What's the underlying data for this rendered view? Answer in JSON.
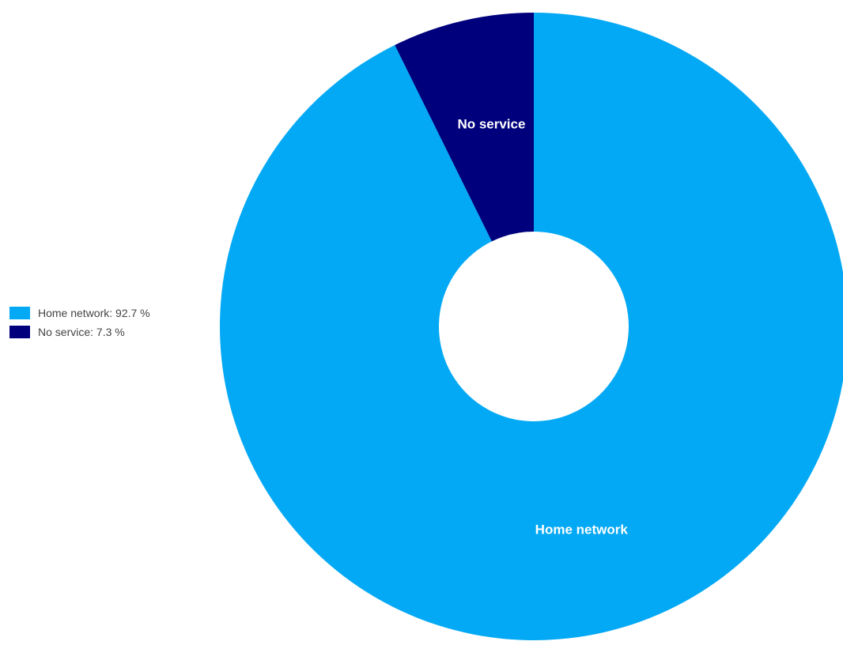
{
  "chart_data": {
    "type": "pie",
    "donut": true,
    "title": "",
    "slices": [
      {
        "label": "Home network",
        "value": 92.7,
        "color": "#03a9f4",
        "legend_text": "Home network: 92.7 %",
        "data_label": "Home network"
      },
      {
        "label": "No service",
        "value": 7.3,
        "color": "#00007d",
        "legend_text": "No service: 7.3 %",
        "data_label": "No service"
      }
    ],
    "legend_position": "left",
    "data_label_color": "#ffffff"
  }
}
